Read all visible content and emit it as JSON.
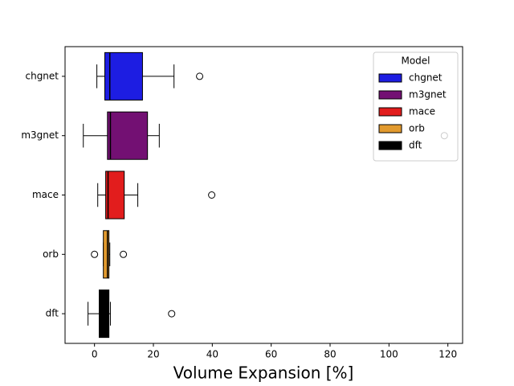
{
  "chart_data": {
    "type": "box",
    "xlabel": "Volume Expansion [%]",
    "categories": [
      "chgnet",
      "m3gnet",
      "mace",
      "orb",
      "dft"
    ],
    "series": [
      {
        "name": "chgnet",
        "color": "#1d1de2",
        "low": 0.8,
        "q1": 3.5,
        "median": 5.2,
        "q3": 16.3,
        "high": 27,
        "outliers": [
          35.7
        ]
      },
      {
        "name": "m3gnet",
        "color": "#731073",
        "low": -3.8,
        "q1": 4.4,
        "median": 5.4,
        "q3": 18,
        "high": 22,
        "outliers": [
          118.8
        ]
      },
      {
        "name": "mace",
        "color": "#e21d1d",
        "low": 1.1,
        "q1": 3.8,
        "median": 4.6,
        "q3": 10.1,
        "high": 14.7,
        "outliers": [
          39.8
        ]
      },
      {
        "name": "orb",
        "color": "#e29a2e",
        "low": 3,
        "q1": 3,
        "median": 4.4,
        "q3": 4.9,
        "high": 5.2,
        "outliers": [
          0,
          9.8
        ]
      },
      {
        "name": "dft",
        "color": "#000000",
        "low": -2.2,
        "q1": 1.6,
        "median": 3.5,
        "q3": 4.9,
        "high": 5.4,
        "outliers": [
          26.2
        ]
      }
    ],
    "xlim": [
      -10,
      125
    ],
    "xticks": [
      0,
      20,
      40,
      60,
      80,
      100,
      120
    ],
    "legend": {
      "title": "Model",
      "loc": "upper right"
    }
  }
}
